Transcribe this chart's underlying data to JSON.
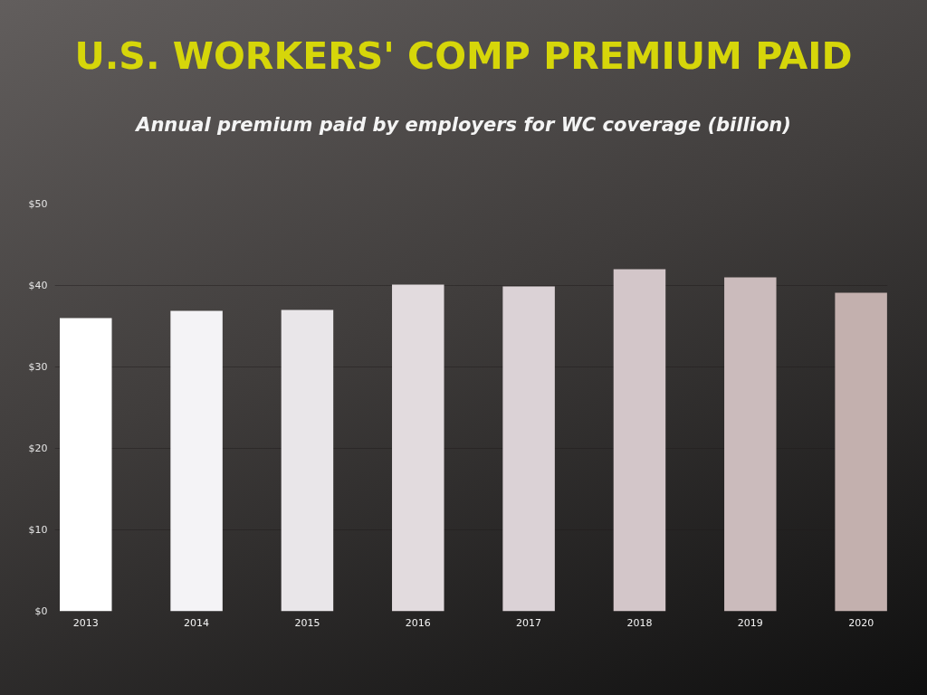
{
  "chart_data": {
    "type": "bar",
    "title": "U.S. WORKERS' COMP PREMIUM PAID",
    "subtitle": "Annual premium paid by employers for WC coverage (billion)",
    "categories": [
      "2013",
      "2014",
      "2015",
      "2016",
      "2017",
      "2018",
      "2019",
      "2020"
    ],
    "values": [
      36.0,
      36.9,
      37.0,
      40.1,
      39.9,
      42.0,
      41.0,
      39.1
    ],
    "colors": [
      "#ffffff",
      "#f4f3f6",
      "#e9e6e9",
      "#e2dbde",
      "#dbd2d6",
      "#d3c6c9",
      "#cbbbbc",
      "#c3b0ae"
    ],
    "ylim": [
      0,
      50
    ],
    "yticks": [
      {
        "value": 0,
        "label": "$0"
      },
      {
        "value": 10,
        "label": "$10"
      },
      {
        "value": 20,
        "label": "$20"
      },
      {
        "value": 30,
        "label": "$30"
      },
      {
        "value": 40,
        "label": "$40"
      },
      {
        "value": 50,
        "label": "$50"
      }
    ],
    "grid": "y"
  }
}
